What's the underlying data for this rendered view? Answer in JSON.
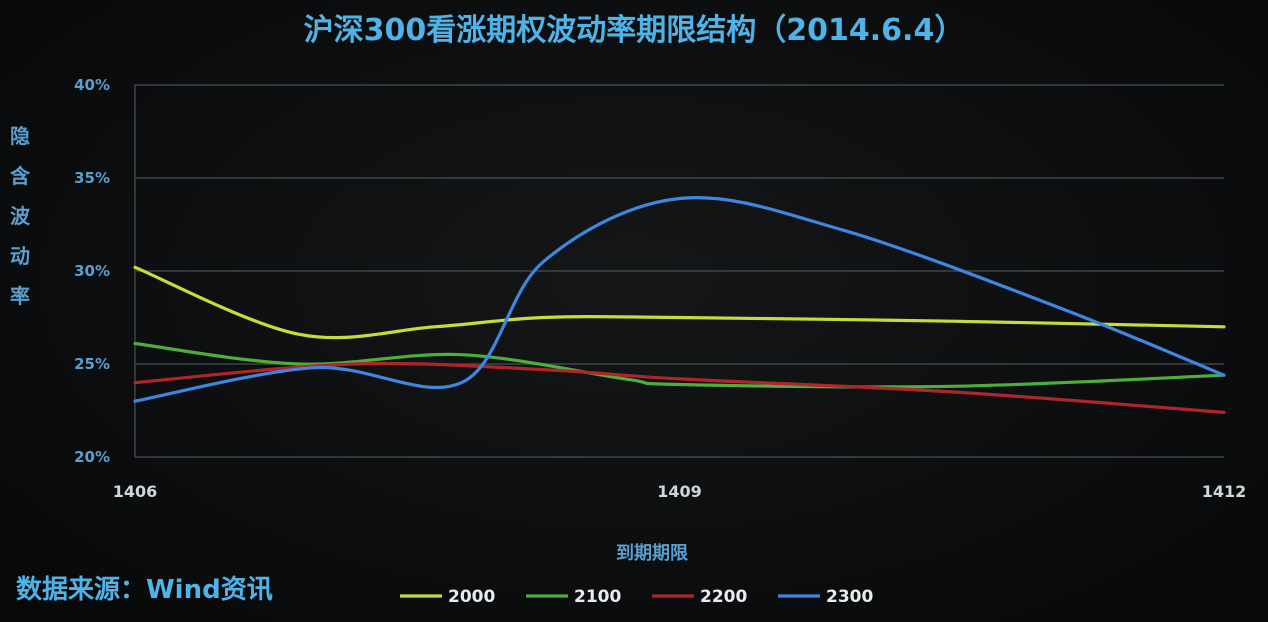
{
  "chart_data": {
    "type": "line",
    "title": "沪深300看涨期权波动率期限结构（2014.6.4）",
    "ylabel": "隐含波动率",
    "xlabel": "到期期限",
    "x": [
      "1406",
      "1409",
      "1412"
    ],
    "ylim": [
      0.2,
      0.4
    ],
    "yticks": [
      "20%",
      "25%",
      "30%",
      "35%",
      "40%"
    ],
    "grid": true,
    "legend_position": "bottom-center",
    "series": [
      {
        "name": "2000",
        "color": "#c4dd3a",
        "points": [
          [
            0,
            0.302
          ],
          [
            0.3,
            0.266
          ],
          [
            0.55,
            0.27
          ],
          [
            0.75,
            0.275
          ],
          [
            1.0,
            0.275
          ],
          [
            1.5,
            0.273
          ],
          [
            2.0,
            0.27
          ]
        ]
      },
      {
        "name": "2100",
        "color": "#4caf3a",
        "points": [
          [
            0,
            0.261
          ],
          [
            0.3,
            0.25
          ],
          [
            0.6,
            0.255
          ],
          [
            0.9,
            0.242
          ],
          [
            1.0,
            0.239
          ],
          [
            1.5,
            0.238
          ],
          [
            2.0,
            0.244
          ]
        ]
      },
      {
        "name": "2200",
        "color": "#b0242c",
        "points": [
          [
            0,
            0.24
          ],
          [
            0.4,
            0.25
          ],
          [
            0.75,
            0.247
          ],
          [
            1.0,
            0.242
          ],
          [
            1.5,
            0.235
          ],
          [
            2.0,
            0.224
          ]
        ]
      },
      {
        "name": "2300",
        "color": "#3f86e0",
        "points": [
          [
            0,
            0.23
          ],
          [
            0.33,
            0.248
          ],
          [
            0.6,
            0.24
          ],
          [
            0.75,
            0.305
          ],
          [
            1.0,
            0.339
          ],
          [
            1.3,
            0.322
          ],
          [
            1.7,
            0.28
          ],
          [
            2.0,
            0.244
          ]
        ]
      }
    ]
  },
  "footer": {
    "source": "数据来源：Wind资讯"
  }
}
